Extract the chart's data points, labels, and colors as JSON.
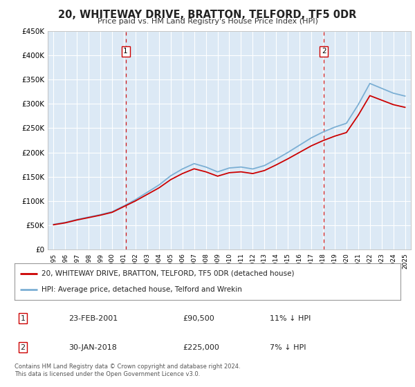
{
  "title": "20, WHITEWAY DRIVE, BRATTON, TELFORD, TF5 0DR",
  "subtitle": "Price paid vs. HM Land Registry's House Price Index (HPI)",
  "background_color": "#ffffff",
  "plot_bg_color": "#dce9f5",
  "grid_color": "#ffffff",
  "ylim": [
    0,
    450000
  ],
  "yticks": [
    0,
    50000,
    100000,
    150000,
    200000,
    250000,
    300000,
    350000,
    400000,
    450000
  ],
  "ytick_labels": [
    "£0",
    "£50K",
    "£100K",
    "£150K",
    "£200K",
    "£250K",
    "£300K",
    "£350K",
    "£400K",
    "£450K"
  ],
  "years": [
    1995,
    1996,
    1997,
    1998,
    1999,
    2000,
    2001,
    2002,
    2003,
    2004,
    2005,
    2006,
    2007,
    2008,
    2009,
    2010,
    2011,
    2012,
    2013,
    2014,
    2015,
    2016,
    2017,
    2018,
    2019,
    2020,
    2021,
    2022,
    2023,
    2024,
    2025
  ],
  "hpi_values": [
    52000,
    56000,
    62000,
    67000,
    72000,
    78000,
    90000,
    103000,
    118000,
    133000,
    152000,
    166000,
    177000,
    170000,
    160000,
    168000,
    170000,
    166000,
    173000,
    186000,
    200000,
    215000,
    230000,
    242000,
    252000,
    260000,
    298000,
    342000,
    332000,
    322000,
    316000
  ],
  "sold_dates": [
    2001.15,
    2018.08
  ],
  "sold_prices": [
    90500,
    225000
  ],
  "annotation1_label": "1",
  "annotation2_label": "2",
  "legend_line1": "20, WHITEWAY DRIVE, BRATTON, TELFORD, TF5 0DR (detached house)",
  "legend_line2": "HPI: Average price, detached house, Telford and Wrekin",
  "table_rows": [
    {
      "num": "1",
      "date": "23-FEB-2001",
      "price": "£90,500",
      "vs_hpi": "11% ↓ HPI"
    },
    {
      "num": "2",
      "date": "30-JAN-2018",
      "price": "£225,000",
      "vs_hpi": "7% ↓ HPI"
    }
  ],
  "footer": "Contains HM Land Registry data © Crown copyright and database right 2024.\nThis data is licensed under the Open Government Licence v3.0.",
  "line_color_sold": "#cc0000",
  "line_color_hpi": "#7bafd4",
  "dashed_line_color": "#cc0000"
}
